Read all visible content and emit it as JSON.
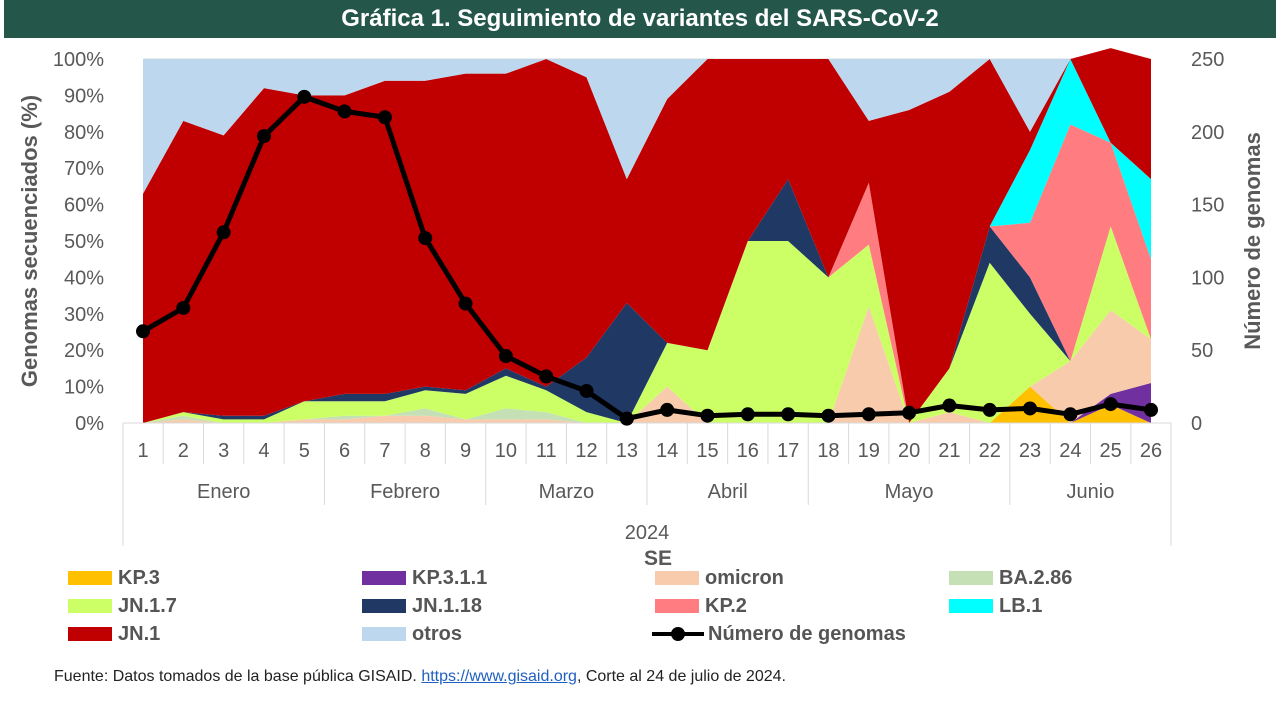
{
  "title": "Gráfica 1. Seguimiento de variantes del SARS-CoV-2",
  "chart_data": {
    "type": "area",
    "stacked": true,
    "x": [
      "1",
      "2",
      "3",
      "4",
      "5",
      "6",
      "7",
      "8",
      "9",
      "10",
      "11",
      "12",
      "13",
      "14",
      "15",
      "16",
      "17",
      "18",
      "19",
      "20",
      "21",
      "22",
      "23",
      "24",
      "25",
      "26"
    ],
    "months": [
      {
        "name": "Enero",
        "from": 1,
        "to": 5
      },
      {
        "name": "Febrero",
        "from": 6,
        "to": 9
      },
      {
        "name": "Marzo",
        "from": 10,
        "to": 13
      },
      {
        "name": "Abril",
        "from": 14,
        "to": 17
      },
      {
        "name": "Mayo",
        "from": 18,
        "to": 22
      },
      {
        "name": "Junio",
        "from": 23,
        "to": 26
      }
    ],
    "year_label": "2024",
    "xlabel": "SE",
    "ylabel": "Genomas secuenciados (%)",
    "y2label": "Número de genomas",
    "ylim": [
      0,
      100
    ],
    "y2lim": [
      0,
      250
    ],
    "yticks": [
      "0%",
      "10%",
      "20%",
      "30%",
      "40%",
      "50%",
      "60%",
      "70%",
      "80%",
      "90%",
      "100%"
    ],
    "y2ticks": [
      "0",
      "50",
      "100",
      "150",
      "200",
      "250"
    ],
    "grid": true,
    "series": [
      {
        "name": "KP.3",
        "color": "#ffc000",
        "values": [
          0,
          0,
          0,
          0,
          0,
          0,
          0,
          0,
          0,
          0,
          0,
          0,
          0,
          0,
          0,
          0,
          0,
          0,
          0,
          0,
          0,
          0,
          10,
          0,
          5,
          0
        ]
      },
      {
        "name": "KP.3.1.1",
        "color": "#7030a0",
        "values": [
          0,
          0,
          0,
          0,
          0,
          0,
          0,
          0,
          0,
          0,
          0,
          0,
          0,
          0,
          0,
          0,
          0,
          0,
          0,
          0,
          0,
          0,
          0,
          0,
          3,
          11
        ]
      },
      {
        "name": "omicron",
        "color": "#f8cbad",
        "values": [
          0,
          1,
          0,
          0,
          1,
          1,
          2,
          2,
          1,
          1,
          1,
          0,
          0,
          10,
          0,
          0,
          0,
          0,
          32,
          0,
          3,
          0,
          0,
          17,
          23,
          12
        ]
      },
      {
        "name": "BA.2.86",
        "color": "#c5e0b4",
        "values": [
          0,
          1,
          0,
          0,
          0,
          1,
          0,
          2,
          0,
          3,
          2,
          0,
          0,
          0,
          0,
          0,
          0,
          0,
          0,
          0,
          0,
          0,
          0,
          0,
          0,
          0
        ]
      },
      {
        "name": "JN.1.7",
        "color": "#ccff66",
        "values": [
          0,
          1,
          1,
          1,
          5,
          4,
          4,
          5,
          7,
          9,
          6,
          3,
          0,
          12,
          20,
          50,
          50,
          40,
          17,
          0,
          12,
          44,
          20,
          0,
          23,
          0
        ]
      },
      {
        "name": "JN.1.18",
        "color": "#203864",
        "values": [
          0,
          0,
          1,
          1,
          0,
          2,
          2,
          1,
          1,
          2,
          1,
          15,
          33,
          0,
          0,
          0,
          17,
          0,
          0,
          0,
          0,
          10,
          10,
          0,
          0,
          0
        ]
      },
      {
        "name": "KP.2",
        "color": "#ff7c80",
        "values": [
          0,
          0,
          0,
          0,
          0,
          0,
          0,
          0,
          0,
          0,
          0,
          0,
          0,
          0,
          0,
          0,
          0,
          0,
          17,
          0,
          0,
          0,
          15,
          65,
          23,
          22
        ]
      },
      {
        "name": "LB.1",
        "color": "#00ffff",
        "values": [
          0,
          0,
          0,
          0,
          0,
          0,
          0,
          0,
          0,
          0,
          0,
          0,
          0,
          0,
          0,
          0,
          0,
          0,
          0,
          0,
          0,
          0,
          20,
          18,
          0,
          22
        ]
      },
      {
        "name": "JN.1",
        "color": "#c00000",
        "values": [
          63,
          80,
          77,
          90,
          84,
          82,
          86,
          84,
          87,
          81,
          90,
          77,
          34,
          67,
          80,
          50,
          33,
          60,
          17,
          86,
          76,
          46,
          5,
          0,
          26,
          33
        ]
      },
      {
        "name": "otros",
        "color": "#bdd7ee",
        "values": [
          37,
          17,
          21,
          8,
          10,
          10,
          6,
          6,
          4,
          4,
          0,
          5,
          33,
          11,
          0,
          0,
          0,
          0,
          17,
          14,
          9,
          0,
          20,
          0,
          0,
          0
        ]
      }
    ],
    "line_series": {
      "name": "Número de genomas",
      "color": "#000000",
      "axis": "right",
      "values": [
        63,
        79,
        131,
        197,
        224,
        214,
        210,
        127,
        82,
        46,
        32,
        22,
        3,
        9,
        5,
        6,
        6,
        5,
        6,
        7,
        12,
        9,
        10,
        6,
        13,
        9
      ]
    }
  },
  "legend": {
    "items": [
      {
        "label": "KP.3",
        "color": "#ffc000"
      },
      {
        "label": "KP.3.1.1",
        "color": "#7030a0"
      },
      {
        "label": "omicron",
        "color": "#f8cbad"
      },
      {
        "label": "BA.2.86",
        "color": "#c5e0b4"
      },
      {
        "label": "JN.1.7",
        "color": "#ccff66"
      },
      {
        "label": "JN.1.18",
        "color": "#203864"
      },
      {
        "label": "KP.2",
        "color": "#ff7c80"
      },
      {
        "label": "LB.1",
        "color": "#00ffff"
      },
      {
        "label": "JN.1",
        "color": "#c00000"
      },
      {
        "label": "otros",
        "color": "#bdd7ee"
      }
    ],
    "line_label": "Número de genomas"
  },
  "source": {
    "prefix": "Fuente: Datos tomados de la base pública GISAID. ",
    "link_text": "https://www.gisaid.org",
    "suffix": ", Corte al 24 de julio de 2024."
  }
}
